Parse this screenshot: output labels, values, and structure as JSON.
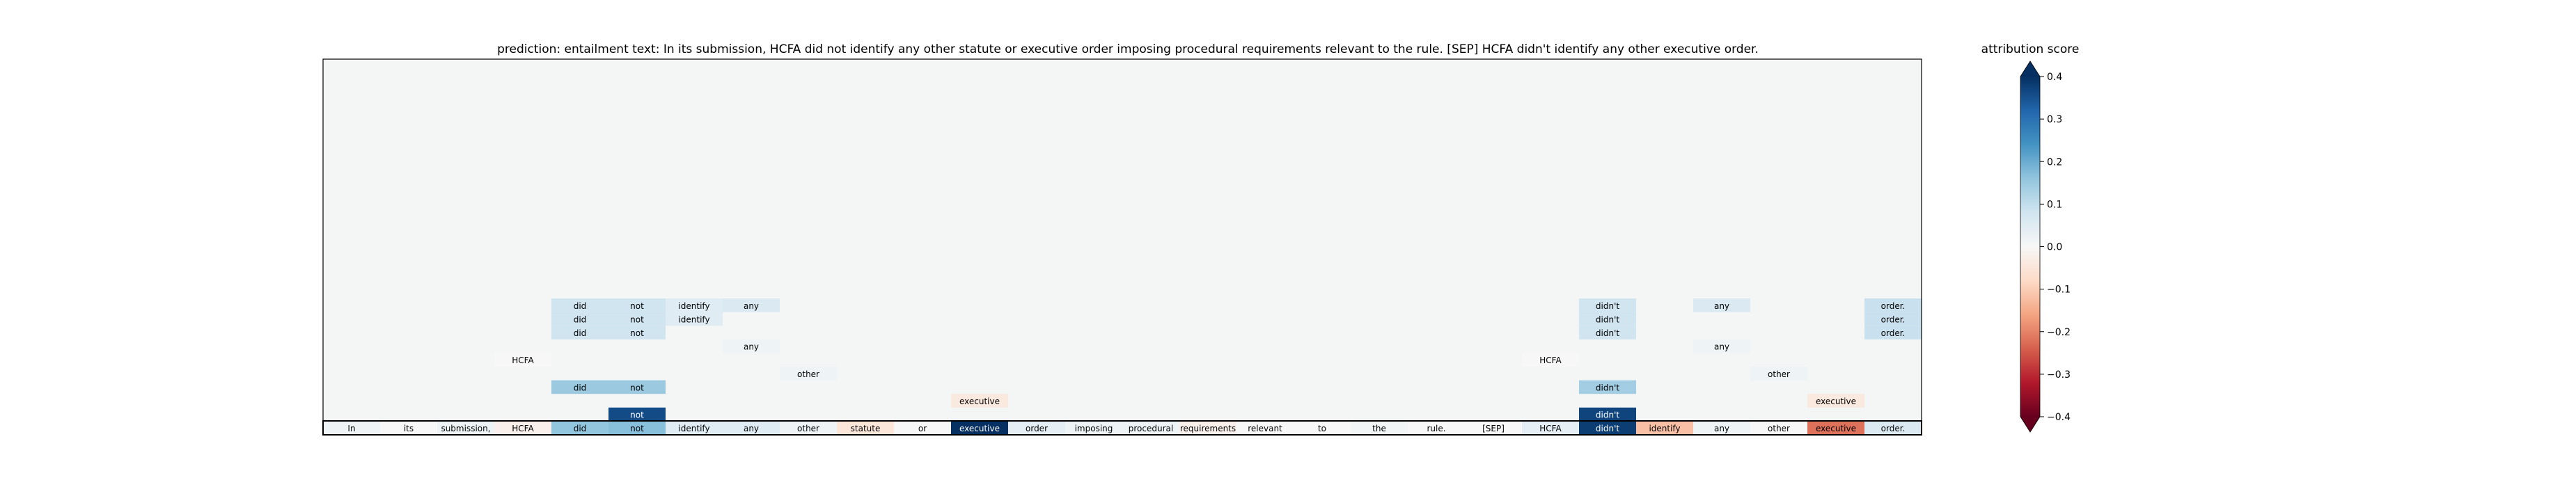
{
  "chart_data": {
    "type": "heatmap",
    "title": "prediction:  entailment     text:  In its submission, HCFA did not identify any other statute or executive order imposing procedural requirements relevant to the rule. [SEP] HCFA didn't identify any other executive order.",
    "tokens": [
      "In",
      "its",
      "submission,",
      "HCFA",
      "did",
      "not",
      "identify",
      "any",
      "other",
      "statute",
      "or",
      "executive",
      "order",
      "imposing",
      "procedural",
      "requirements",
      "relevant",
      "to",
      "the",
      "rule.",
      "[SEP]",
      "HCFA",
      "didn't",
      "identify",
      "any",
      "other",
      "executive",
      "order."
    ],
    "base_scores": [
      0.02,
      0.0,
      0.02,
      -0.02,
      0.16,
      0.17,
      0.05,
      0.05,
      0.02,
      -0.05,
      0.0,
      0.45,
      0.04,
      0.02,
      0.02,
      -0.02,
      0.0,
      0.0,
      0.01,
      0.0,
      0.0,
      0.04,
      0.38,
      -0.12,
      0.02,
      0.0,
      -0.22,
      0.06
    ],
    "rows": [
      {
        "cells": [
          {
            "col": 5,
            "label": "not",
            "score": 0.36
          },
          {
            "col": 22,
            "label": "didn't",
            "score": 0.37
          }
        ]
      },
      {
        "cells": [
          {
            "col": 11,
            "label": "executive",
            "score": -0.04
          },
          {
            "col": 26,
            "label": "executive",
            "score": -0.04
          }
        ]
      },
      {
        "cells": [
          {
            "col": 4,
            "label": "did",
            "score": 0.15
          },
          {
            "col": 5,
            "label": "not",
            "score": 0.15
          },
          {
            "col": 22,
            "label": "didn't",
            "score": 0.14
          }
        ]
      },
      {
        "cells": [
          {
            "col": 8,
            "label": "other",
            "score": 0.02
          },
          {
            "col": 25,
            "label": "other",
            "score": 0.02
          }
        ]
      },
      {
        "cells": [
          {
            "col": 3,
            "label": "HCFA",
            "score": 0.0
          },
          {
            "col": 21,
            "label": "HCFA",
            "score": 0.0
          }
        ]
      },
      {
        "cells": [
          {
            "col": 7,
            "label": "any",
            "score": 0.02
          },
          {
            "col": 24,
            "label": "any",
            "score": 0.02
          }
        ]
      },
      {
        "cells": [
          {
            "col": 4,
            "label": "did",
            "score": 0.08
          },
          {
            "col": 5,
            "label": "not",
            "score": 0.08
          },
          {
            "col": 22,
            "label": "didn't",
            "score": 0.08
          },
          {
            "col": 27,
            "label": "order.",
            "score": 0.09
          }
        ]
      },
      {
        "cells": [
          {
            "col": 4,
            "label": "did",
            "score": 0.08
          },
          {
            "col": 5,
            "label": "not",
            "score": 0.08
          },
          {
            "col": 6,
            "label": "identify",
            "score": 0.05
          },
          {
            "col": 22,
            "label": "didn't",
            "score": 0.08
          },
          {
            "col": 27,
            "label": "order.",
            "score": 0.09
          }
        ]
      },
      {
        "cells": [
          {
            "col": 4,
            "label": "did",
            "score": 0.08
          },
          {
            "col": 5,
            "label": "not",
            "score": 0.08
          },
          {
            "col": 6,
            "label": "identify",
            "score": 0.05
          },
          {
            "col": 7,
            "label": "any",
            "score": 0.06
          },
          {
            "col": 22,
            "label": "didn't",
            "score": 0.08
          },
          {
            "col": 24,
            "label": "any",
            "score": 0.06
          },
          {
            "col": 27,
            "label": "order.",
            "score": 0.09
          }
        ]
      }
    ],
    "colorbar": {
      "label": "attribution score",
      "min": -0.4,
      "max": 0.4,
      "ticks": [
        0.4,
        0.3,
        0.2,
        0.1,
        0.0,
        -0.1,
        -0.2,
        -0.3,
        -0.4
      ],
      "tick_labels": [
        "0.4",
        "0.3",
        "0.2",
        "0.1",
        "0.0",
        "−0.1",
        "−0.2",
        "−0.3",
        "−0.4"
      ]
    },
    "colormap": "RdBu",
    "background_color": "#f4f6f6"
  }
}
